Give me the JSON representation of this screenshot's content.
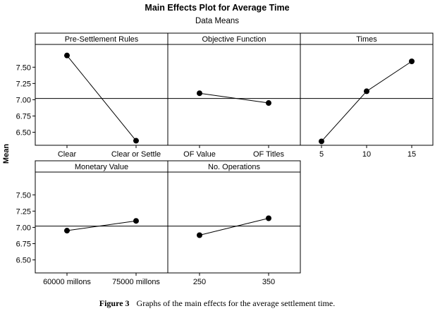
{
  "header": {
    "title": "Main Effects Plot for Average Time",
    "subtitle": "Data Means"
  },
  "y_axis_label": "Mean",
  "caption": {
    "label": "Figure 3",
    "text": "Graphs of the main effects for the average settlement time."
  },
  "colors": {
    "line": "#000000",
    "marker": "#000000",
    "reference_line": "#000000",
    "panel_header_bg": "#ffffff"
  },
  "chart_data": {
    "type": "line",
    "title": "Main Effects Plot for Average Time",
    "subtitle": "Data Means",
    "ylabel": "Mean",
    "ylim": [
      6.3,
      7.85
    ],
    "yticks": [
      6.5,
      6.75,
      7.0,
      7.25,
      7.5
    ],
    "ytick_labels": [
      "6.50",
      "6.75",
      "7.00",
      "7.25",
      "7.50"
    ],
    "reference_line": 7.02,
    "grid": false,
    "panels": [
      {
        "title": "Pre-Settlement Rules",
        "categories": [
          "Clear",
          "Clear or Settle"
        ],
        "values": [
          7.68,
          6.37
        ]
      },
      {
        "title": "Objective Function",
        "categories": [
          "OF Value",
          "OF Titles"
        ],
        "values": [
          7.1,
          6.95
        ]
      },
      {
        "title": "Times",
        "categories": [
          "5",
          "10",
          "15"
        ],
        "values": [
          6.36,
          7.13,
          7.59
        ]
      },
      {
        "title": "Monetary Value",
        "categories": [
          "60000 millons",
          "75000 millons"
        ],
        "values": [
          6.95,
          7.1
        ]
      },
      {
        "title": "No. Operations",
        "categories": [
          "250",
          "350"
        ],
        "values": [
          6.88,
          7.14
        ]
      }
    ]
  }
}
